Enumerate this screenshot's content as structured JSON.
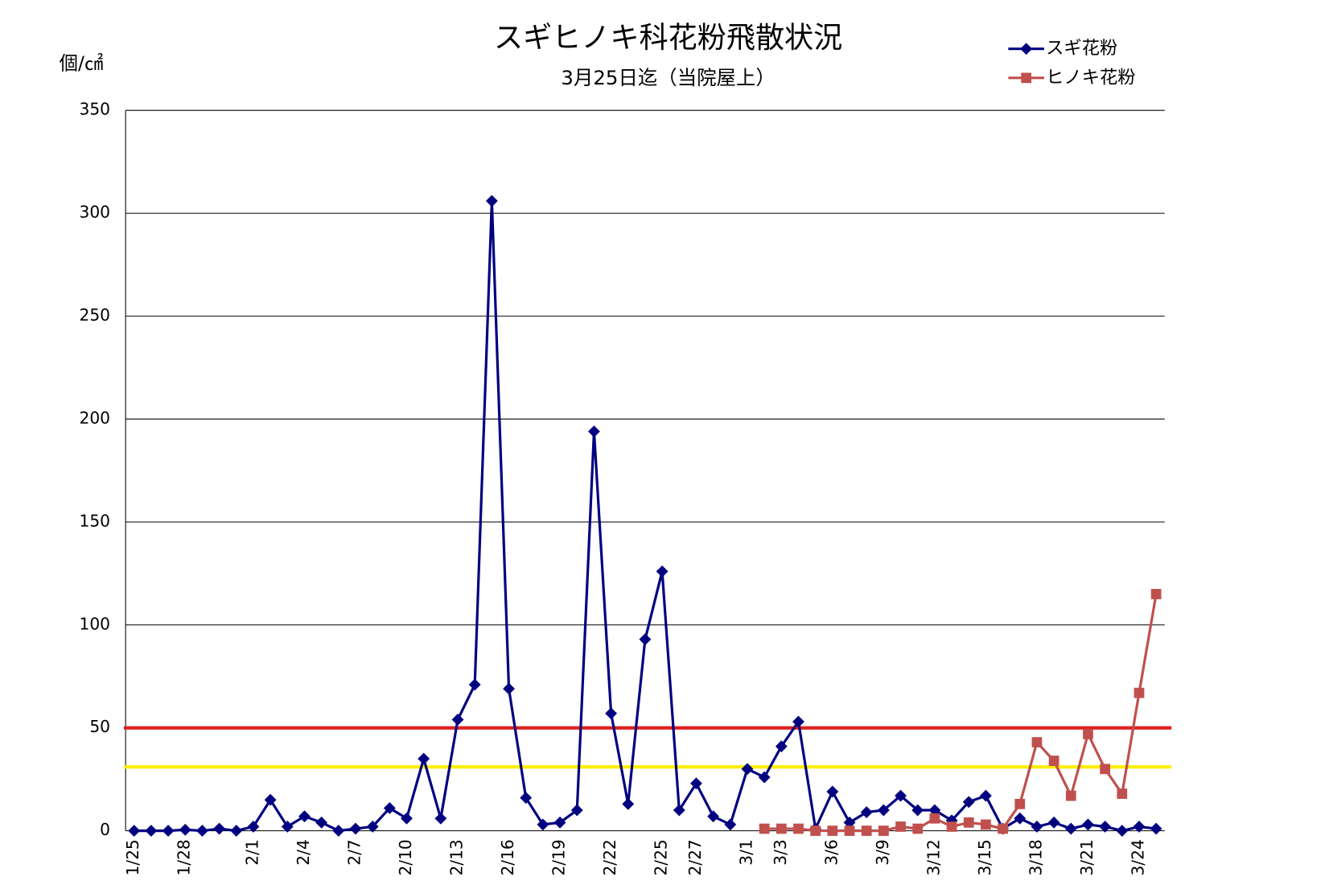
{
  "chart_data": {
    "type": "line",
    "title": "スギヒノキ科花粉飛散状況",
    "subtitle": "3月25日迄（当院屋上）",
    "y_label": "個/㎠",
    "categories": [
      "1/25",
      null,
      null,
      "1/28",
      null,
      null,
      null,
      "2/1",
      null,
      null,
      "2/4",
      null,
      null,
      "2/7",
      null,
      null,
      "2/10",
      null,
      null,
      "2/13",
      null,
      null,
      "2/16",
      null,
      null,
      "2/19",
      null,
      null,
      "2/22",
      null,
      null,
      "2/25",
      null,
      "2/27",
      null,
      null,
      "3/1",
      null,
      "3/3",
      null,
      null,
      "3/6",
      null,
      null,
      "3/9",
      null,
      null,
      "3/12",
      null,
      null,
      "3/15",
      null,
      null,
      "3/18",
      null,
      null,
      "3/21",
      null,
      null,
      "3/24",
      null
    ],
    "series": [
      {
        "name": "スギ花粉",
        "color": "#000080",
        "marker": "diamond",
        "values": [
          0,
          0,
          0,
          0.5,
          0,
          1,
          0,
          2,
          15,
          2,
          7,
          4,
          0,
          1,
          2,
          11,
          6,
          35,
          6,
          54,
          71,
          306,
          69,
          16,
          3,
          4,
          10,
          194,
          57,
          13,
          93,
          126,
          10,
          23,
          7,
          3,
          30,
          26,
          41,
          53,
          1,
          19,
          4,
          9,
          10,
          17,
          10,
          10,
          5,
          14,
          17,
          1,
          6,
          2,
          4,
          1,
          3,
          2,
          0,
          2,
          1
        ]
      },
      {
        "name": "ヒノキ花粉",
        "color": "#c0504d",
        "marker": "square",
        "values": [
          null,
          null,
          null,
          null,
          null,
          null,
          null,
          null,
          null,
          null,
          null,
          null,
          null,
          null,
          null,
          null,
          null,
          null,
          null,
          null,
          null,
          null,
          null,
          null,
          null,
          null,
          null,
          null,
          null,
          null,
          null,
          null,
          null,
          null,
          null,
          null,
          null,
          1,
          1,
          1,
          0,
          0,
          0,
          0,
          0,
          2,
          1,
          6,
          2,
          4,
          3,
          1,
          13,
          43,
          34,
          17,
          47,
          30,
          18,
          67,
          115
        ]
      }
    ],
    "reference_lines": [
      {
        "value": 50,
        "color": "#e02020"
      },
      {
        "value": 31,
        "color": "#ffee00"
      }
    ],
    "ylim": [
      0,
      350
    ],
    "yticks": [
      0,
      50,
      100,
      150,
      200,
      250,
      300,
      350
    ],
    "grid": true,
    "legend": "top-right"
  }
}
